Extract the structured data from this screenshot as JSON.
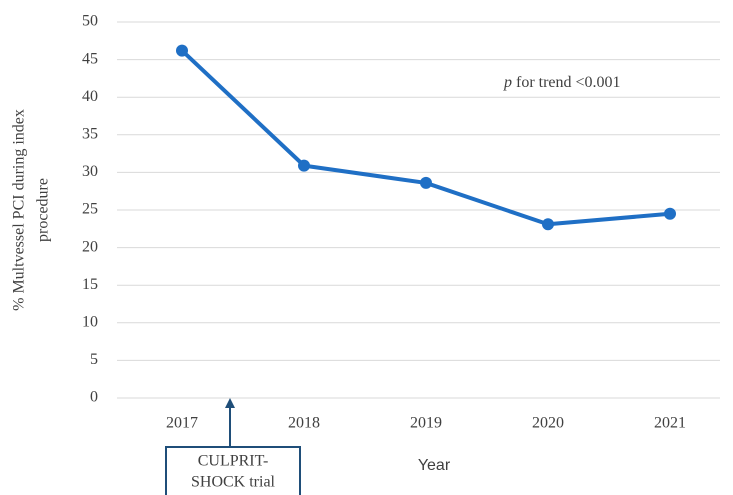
{
  "chart_data": {
    "type": "line",
    "categories": [
      "2017",
      "2018",
      "2019",
      "2020",
      "2021"
    ],
    "series": [
      {
        "name": "Multivessel PCI",
        "color": "#1f6fc5",
        "values": [
          46.2,
          30.9,
          28.6,
          23.1,
          24.5
        ]
      }
    ],
    "ylim": [
      0,
      50
    ],
    "yticks": [
      0,
      5,
      10,
      15,
      20,
      25,
      30,
      35,
      40,
      45,
      50
    ],
    "grid": true,
    "y_label": [
      "% Multvessel PCI during index",
      "procedure"
    ],
    "x_label": "Year",
    "annotation": {
      "italic": "p",
      "text": "for trend <0.001"
    },
    "callout": [
      "CULPRIT-",
      "SHOCK trial"
    ]
  }
}
